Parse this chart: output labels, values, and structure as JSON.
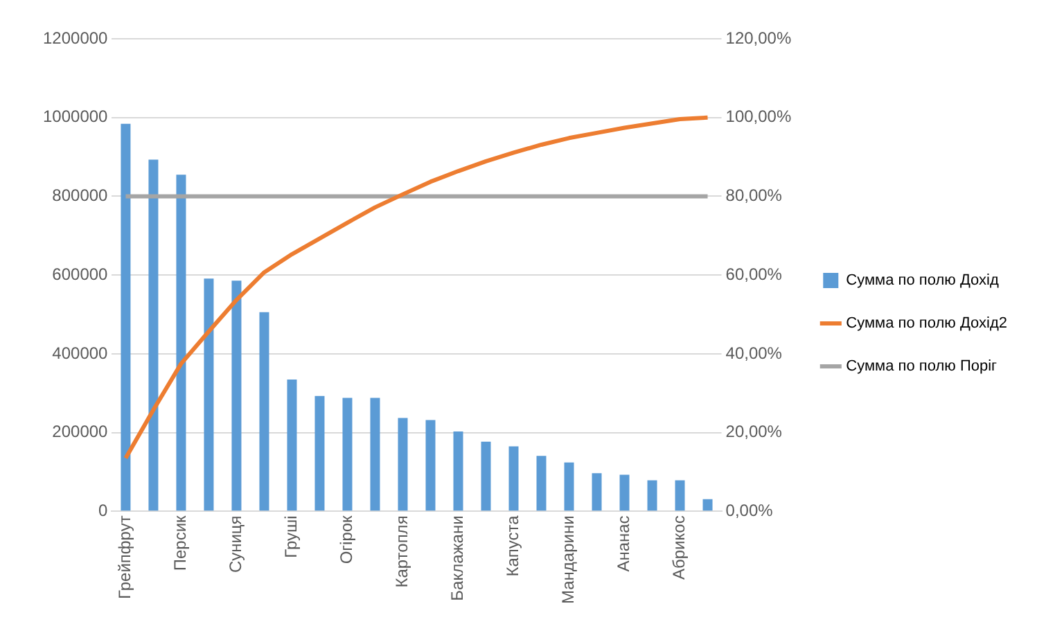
{
  "chart_data": {
    "type": "bar",
    "categories": [
      "Грейпфрут",
      null,
      "Персик",
      null,
      "Суниця",
      null,
      "Груші",
      null,
      "Огірок",
      null,
      "Картопля",
      null,
      "Баклажани",
      null,
      "Капуста",
      null,
      "Мандарини",
      null,
      "Ананас",
      null,
      "Абрикос",
      null
    ],
    "series": [
      {
        "name": "Сумма по полю Дохід",
        "color": "#5b9bd5",
        "values": [
          984000,
          893000,
          855000,
          591000,
          586000,
          506000,
          335000,
          293000,
          288000,
          288000,
          237000,
          232000,
          203000,
          177000,
          165000,
          141000,
          124000,
          97000,
          93000,
          79000,
          79000,
          31000
        ]
      },
      {
        "name": "Сумма по полю Дохід2",
        "type": "line",
        "axis": "y2",
        "color": "#ed7d31",
        "values": [
          13.5,
          25.8,
          37.5,
          45.7,
          53.7,
          60.7,
          65.3,
          69.3,
          73.3,
          77.2,
          80.5,
          83.7,
          86.4,
          88.9,
          91.1,
          93.1,
          94.8,
          96.1,
          97.4,
          98.5,
          99.6,
          100
        ]
      },
      {
        "name": "Сумма по полю Поріг",
        "type": "line",
        "axis": "y2",
        "color": "#a5a5a5",
        "values": [
          80,
          80,
          80,
          80,
          80,
          80,
          80,
          80,
          80,
          80,
          80,
          80,
          80,
          80,
          80,
          80,
          80,
          80,
          80,
          80,
          80,
          80
        ]
      }
    ],
    "ylim": [
      0,
      1200000
    ],
    "yticks": [
      0,
      200000,
      400000,
      600000,
      800000,
      1000000,
      1200000
    ],
    "y2lim": [
      0,
      120
    ],
    "y2ticks": [
      {
        "value": 0,
        "label": "0,00%"
      },
      {
        "value": 20,
        "label": "20,00%"
      },
      {
        "value": 40,
        "label": "40,00%"
      },
      {
        "value": 60,
        "label": "60,00%"
      },
      {
        "value": 80,
        "label": "80,00%"
      },
      {
        "value": 100,
        "label": "100,00%"
      },
      {
        "value": 120,
        "label": "120,00%"
      }
    ],
    "grid": "y",
    "legend": "right",
    "marker": "none",
    "line_style": "solid"
  }
}
